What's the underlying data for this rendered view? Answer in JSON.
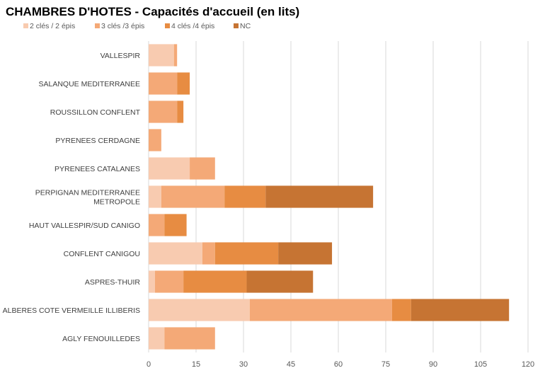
{
  "chart_data": {
    "type": "bar",
    "orientation": "horizontal",
    "stacked": true,
    "title": "CHAMBRES D'HOTES - Capacités d'accueil (en lits)",
    "xlabel": "",
    "ylabel": "",
    "xlim": [
      0,
      120
    ],
    "xticks": [
      0,
      15,
      30,
      45,
      60,
      75,
      90,
      105,
      120
    ],
    "grid": "vertical",
    "legend_position": "top-left",
    "categories": [
      "VALLESPIR",
      "SALANQUE MEDITERRANEE",
      "ROUSSILLON CONFLENT",
      "PYRENEES CERDAGNE",
      "PYRENEES CATALANES",
      [
        "PERPIGNAN MEDITERRANEE",
        "METROPOLE"
      ],
      "HAUT VALLESPIR/SUD CANIGO",
      "CONFLENT CANIGOU",
      "ASPRES-THUIR",
      "ALBERES COTE VERMEILLE ILLIBERIS",
      "AGLY FENOUILLEDES"
    ],
    "series": [
      {
        "name": "2 clés / 2 épis",
        "color": "#f8cbb0",
        "values": [
          8,
          0,
          0,
          0,
          13,
          4,
          0,
          17,
          2,
          32,
          5
        ]
      },
      {
        "name": "3 clés /3 épis",
        "color": "#f4a977",
        "values": [
          1,
          9,
          9,
          4,
          8,
          20,
          5,
          4,
          9,
          45,
          16
        ]
      },
      {
        "name": "4 clés /4 épis",
        "color": "#e78c42",
        "values": [
          0,
          4,
          2,
          0,
          0,
          13,
          7,
          20,
          20,
          6,
          0
        ]
      },
      {
        "name": "NC",
        "color": "#c67433",
        "values": [
          0,
          0,
          0,
          0,
          0,
          34,
          0,
          17,
          21,
          31,
          0
        ]
      }
    ]
  }
}
